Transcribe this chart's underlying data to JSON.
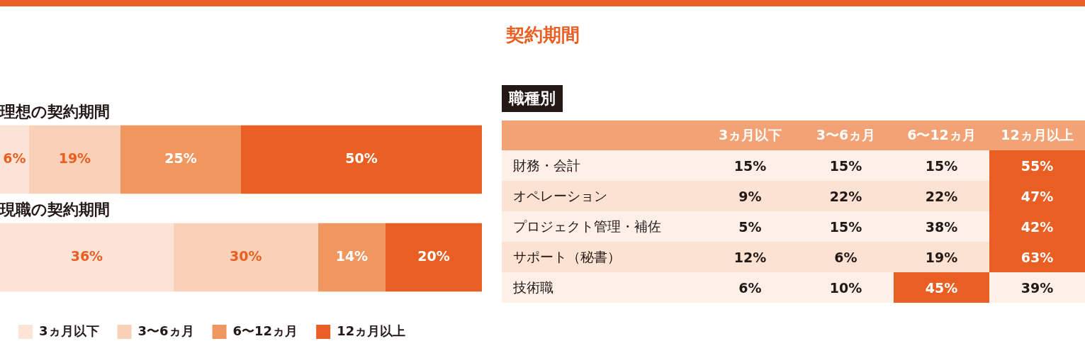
{
  "chart_data": [
    {
      "type": "bar",
      "orientation": "horizontal",
      "stacked": true,
      "categories": [
        "理想の契約期間",
        "現職の契約期間"
      ],
      "xlim": [
        0,
        100
      ],
      "tick_labels": "y",
      "legend": "bottom",
      "series": [
        {
          "name": "3ヵ月以下",
          "color": "#fbe3d5",
          "values": [
            6,
            36
          ],
          "value_labels": [
            "6%",
            "36%"
          ]
        },
        {
          "name": "3〜6ヵ月",
          "color": "#f9d1b9",
          "values": [
            19,
            30
          ],
          "value_labels": [
            "19%",
            "30%"
          ]
        },
        {
          "name": "6〜12ヵ月",
          "color": "#f0965f",
          "values": [
            25,
            14
          ],
          "value_labels": [
            "25%",
            "14%"
          ]
        },
        {
          "name": "12ヵ月以上",
          "color": "#e95e22",
          "values": [
            50,
            20
          ],
          "value_labels": [
            "50%",
            "20%"
          ]
        }
      ]
    },
    {
      "type": "heatmap",
      "title": "契約期間",
      "subtitle": "職種別",
      "categories": [
        "3ヵ月以下",
        "3〜6ヵ月",
        "6〜12ヵ月",
        "12ヵ月以上"
      ],
      "y_categories": [
        "財務・会計",
        "オペレーション",
        "プロジェクト管理・補佐",
        "サポート（秘書）",
        "技術職"
      ],
      "cells": [
        [
          15,
          15,
          15,
          55
        ],
        [
          9,
          22,
          22,
          47
        ],
        [
          5,
          15,
          38,
          42
        ],
        [
          12,
          6,
          19,
          63
        ],
        [
          6,
          10,
          45,
          39
        ]
      ],
      "cell_labels": [
        [
          "15%",
          "15%",
          "15%",
          "55%"
        ],
        [
          "9%",
          "22%",
          "22%",
          "47%"
        ],
        [
          "5%",
          "15%",
          "38%",
          "42%"
        ],
        [
          "12%",
          "6%",
          "19%",
          "63%"
        ],
        [
          "6%",
          "10%",
          "45%",
          "39%"
        ]
      ]
    }
  ]
}
